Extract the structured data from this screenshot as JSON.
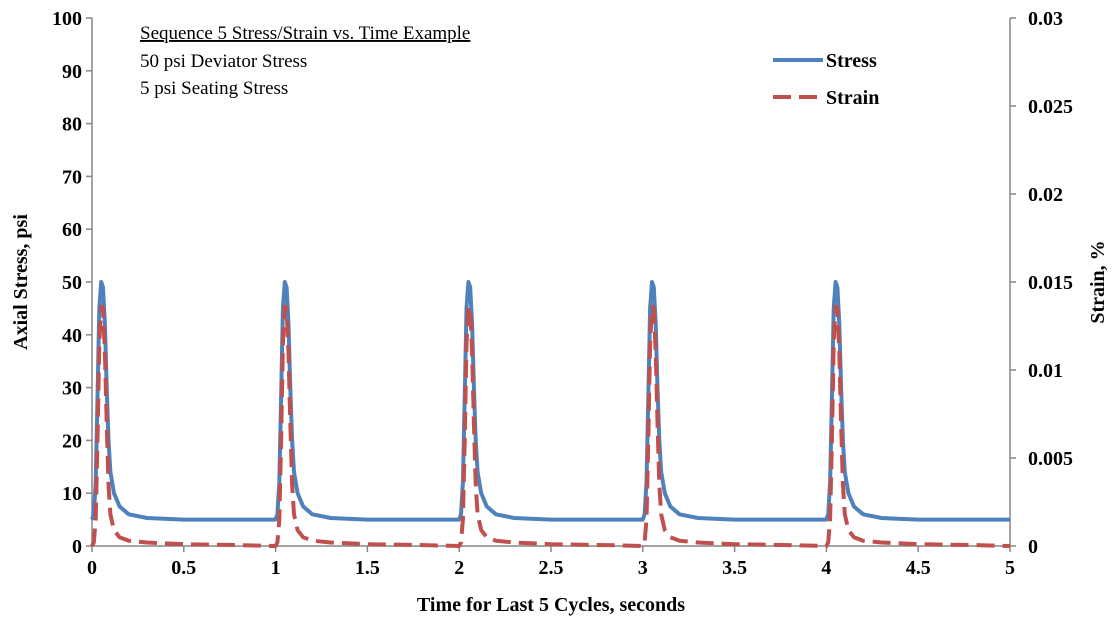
{
  "chart_data": {
    "type": "line",
    "xlabel": "Time for Last 5 Cycles, seconds",
    "ylabel": "Axial Stress, psi",
    "y2label": "Strain, %",
    "xlim": [
      0,
      5
    ],
    "ylim": [
      0,
      100
    ],
    "y2lim": [
      0,
      0.03
    ],
    "x_ticks": [
      "0",
      "0.5",
      "1",
      "1.5",
      "2",
      "2.5",
      "3",
      "3.5",
      "4",
      "4.5",
      "5"
    ],
    "y_ticks": [
      "0",
      "10",
      "20",
      "30",
      "40",
      "50",
      "60",
      "70",
      "80",
      "90",
      "100"
    ],
    "y2_ticks": [
      "0",
      "0.005",
      "0.01",
      "0.015",
      "0.02",
      "0.025",
      "0.03"
    ],
    "grid": false,
    "legend_position": "top-right",
    "annotations": [
      "Sequence 5 Stress/Strain vs. Time Example",
      "50 psi Deviator Stress",
      "5 psi Seating Stress"
    ],
    "series": [
      {
        "name": "Stress",
        "axis": "left",
        "color": "#4F81BD",
        "style": "solid",
        "x": [
          0,
          0.01,
          0.02,
          0.03,
          0.04,
          0.05,
          0.06,
          0.07,
          0.08,
          0.09,
          0.1,
          0.12,
          0.15,
          0.2,
          0.3,
          0.5,
          0.8,
          1.0,
          1.01,
          1.02,
          1.03,
          1.04,
          1.05,
          1.06,
          1.07,
          1.08,
          1.09,
          1.1,
          1.12,
          1.15,
          1.2,
          1.3,
          1.5,
          1.8,
          2.0,
          2.01,
          2.02,
          2.03,
          2.04,
          2.05,
          2.06,
          2.07,
          2.08,
          2.09,
          2.1,
          2.12,
          2.15,
          2.2,
          2.3,
          2.5,
          2.8,
          3.0,
          3.01,
          3.02,
          3.03,
          3.04,
          3.05,
          3.06,
          3.07,
          3.08,
          3.09,
          3.1,
          3.12,
          3.15,
          3.2,
          3.3,
          3.5,
          3.8,
          4.0,
          4.01,
          4.02,
          4.03,
          4.04,
          4.05,
          4.06,
          4.07,
          4.08,
          4.09,
          4.1,
          4.12,
          4.15,
          4.2,
          4.3,
          4.5,
          4.8,
          5.0
        ],
        "y": [
          5,
          6,
          12,
          28,
          45,
          50,
          49,
          42,
          30,
          20,
          14,
          10,
          7.5,
          6,
          5.3,
          5,
          5,
          5,
          6,
          12,
          28,
          45,
          50,
          49,
          42,
          30,
          20,
          14,
          10,
          7.5,
          6,
          5.3,
          5,
          5,
          5,
          6,
          12,
          28,
          45,
          50,
          49,
          42,
          30,
          20,
          14,
          10,
          7.5,
          6,
          5.3,
          5,
          5,
          5,
          6,
          12,
          28,
          45,
          50,
          49,
          42,
          30,
          20,
          14,
          10,
          7.5,
          6,
          5.3,
          5,
          5,
          5,
          6,
          12,
          28,
          45,
          50,
          49,
          42,
          30,
          20,
          14,
          10,
          7.5,
          6,
          5.3,
          5,
          5,
          5
        ]
      },
      {
        "name": "Strain",
        "axis": "right",
        "color": "#C0504D",
        "style": "dashed",
        "x": [
          0,
          0.01,
          0.02,
          0.03,
          0.04,
          0.05,
          0.06,
          0.07,
          0.08,
          0.09,
          0.1,
          0.12,
          0.15,
          0.2,
          0.3,
          0.5,
          0.8,
          1.0,
          1.01,
          1.02,
          1.03,
          1.04,
          1.05,
          1.06,
          1.07,
          1.08,
          1.09,
          1.1,
          1.12,
          1.15,
          1.2,
          1.3,
          1.5,
          1.8,
          2.0,
          2.01,
          2.02,
          2.03,
          2.04,
          2.05,
          2.06,
          2.07,
          2.08,
          2.09,
          2.1,
          2.12,
          2.15,
          2.2,
          2.3,
          2.5,
          2.8,
          3.0,
          3.01,
          3.02,
          3.03,
          3.04,
          3.05,
          3.06,
          3.07,
          3.08,
          3.09,
          3.1,
          3.12,
          3.15,
          3.2,
          3.3,
          3.5,
          3.8,
          4.0,
          4.01,
          4.02,
          4.03,
          4.04,
          4.05,
          4.06,
          4.07,
          4.08,
          4.09,
          4.1,
          4.12,
          4.15,
          4.2,
          4.3,
          4.5,
          4.8,
          5.0
        ],
        "y": [
          0,
          0.0002,
          0.0015,
          0.006,
          0.0115,
          0.0136,
          0.0135,
          0.011,
          0.007,
          0.0035,
          0.0018,
          0.0009,
          0.0005,
          0.0003,
          0.0002,
          0.0001,
          5e-05,
          0,
          0.0002,
          0.0015,
          0.006,
          0.0115,
          0.0136,
          0.0135,
          0.011,
          0.007,
          0.0035,
          0.0018,
          0.0009,
          0.0005,
          0.0003,
          0.0002,
          0.0001,
          5e-05,
          0,
          0.0002,
          0.0015,
          0.006,
          0.0115,
          0.0136,
          0.0135,
          0.011,
          0.007,
          0.0035,
          0.0018,
          0.0009,
          0.0005,
          0.0003,
          0.0002,
          0.0001,
          5e-05,
          0,
          0.0002,
          0.0015,
          0.006,
          0.0115,
          0.0136,
          0.0135,
          0.011,
          0.007,
          0.0035,
          0.0018,
          0.0009,
          0.0005,
          0.0003,
          0.0002,
          0.0001,
          5e-05,
          0,
          0.0002,
          0.0015,
          0.006,
          0.0115,
          0.0136,
          0.0135,
          0.011,
          0.007,
          0.0035,
          0.0018,
          0.0009,
          0.0005,
          0.0003,
          0.0002,
          0.0001,
          5e-05,
          0
        ]
      }
    ]
  }
}
